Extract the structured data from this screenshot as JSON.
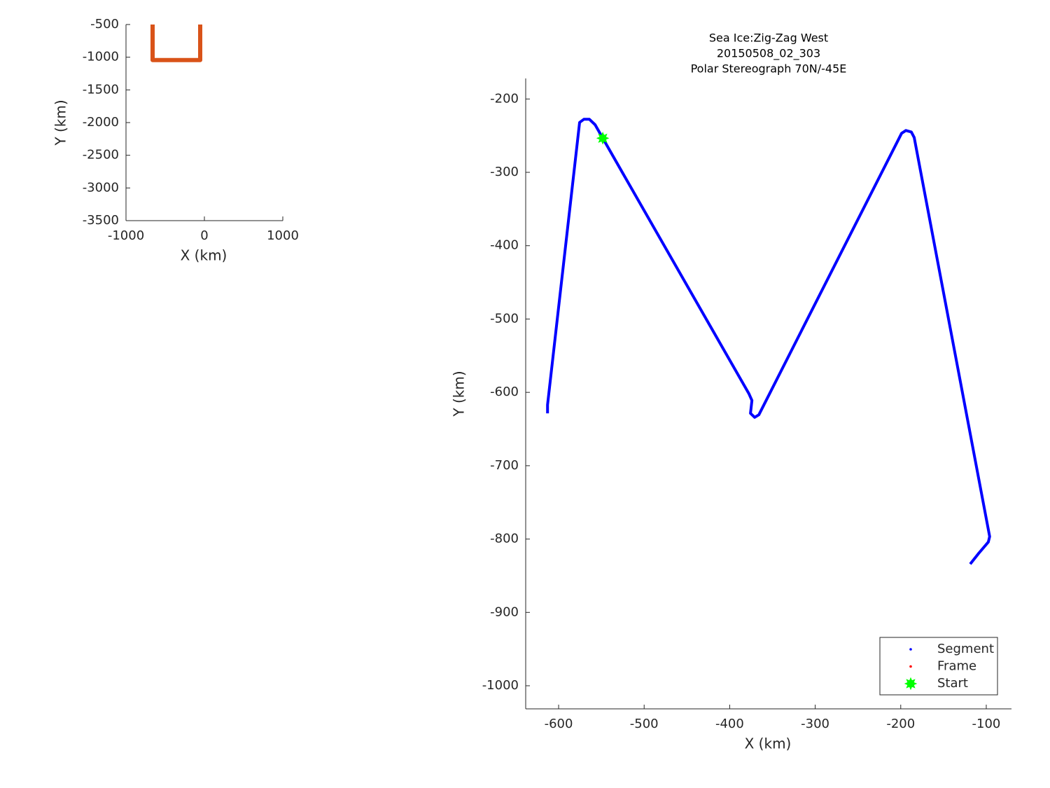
{
  "chart_data": [
    {
      "type": "line",
      "xlabel": "X (km)",
      "ylabel": "Y (km)",
      "xlim": [
        -1000,
        1000
      ],
      "ylim": [
        -3500,
        -500
      ],
      "xticks": [
        -1000,
        0,
        1000
      ],
      "yticks": [
        -500,
        -1000,
        -1500,
        -2000,
        -2500,
        -3000,
        -3500
      ],
      "series": [
        {
          "color": "#d95319",
          "marker": "line",
          "x": [
            -661,
            -661,
            -54,
            -54
          ],
          "y": [
            -500,
            -1043,
            -1043,
            -500
          ]
        }
      ]
    },
    {
      "type": "line",
      "title": [
        "Sea Ice:Zig-Zag West",
        "20150508_02_303",
        "Polar Stereograph 70N/-45E"
      ],
      "xlabel": "X (km)",
      "ylabel": "Y (km)",
      "xlim": [
        -638.5,
        -70.5
      ],
      "ylim": [
        -1031.5,
        -172
      ],
      "xticks": [
        -600,
        -500,
        -400,
        -300,
        -200,
        -100
      ],
      "yticks": [
        -200,
        -300,
        -400,
        -500,
        -600,
        -700,
        -800,
        -900,
        -1000
      ],
      "legend": "lower right",
      "series": [
        {
          "name": "Segment",
          "color": "#0000ff",
          "marker": "line",
          "x": [
            -613,
            -613,
            -575.5,
            -570.5,
            -564,
            -557.4,
            -548.4,
            -377.4,
            -374,
            -375.7,
            -370.8,
            -365.9,
            -199,
            -194,
            -187.6,
            -184.3,
            -96,
            -97.6,
            -109,
            -118.8
          ],
          "y": [
            -628.6,
            -617,
            -232,
            -227.7,
            -227.7,
            -235,
            -253.5,
            -602,
            -611,
            -628.6,
            -634,
            -630.6,
            -246.8,
            -243,
            -245,
            -252.5,
            -796.6,
            -804,
            -819.6,
            -834
          ]
        },
        {
          "name": "Frame",
          "color": "#ff0000",
          "marker": "point",
          "x": [],
          "y": []
        },
        {
          "name": "Start",
          "color": "#00ff00",
          "marker": "star",
          "x": [
            -548.4
          ],
          "y": [
            -253.5
          ]
        }
      ]
    }
  ]
}
